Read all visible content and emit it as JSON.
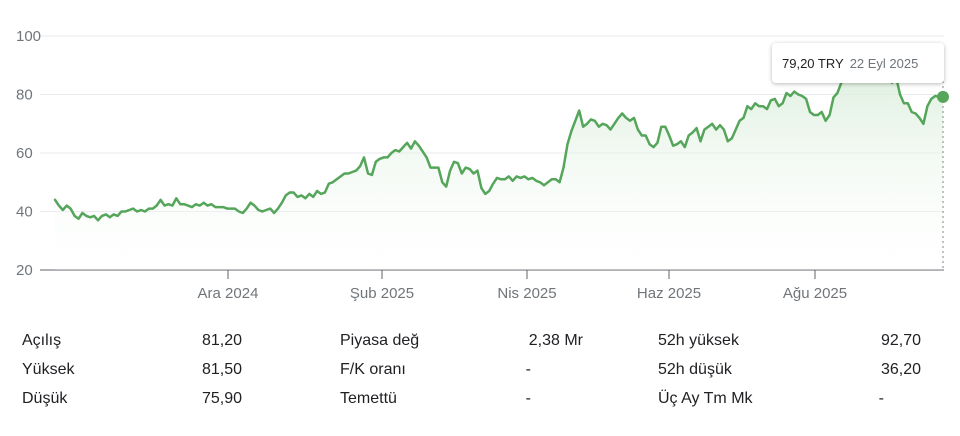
{
  "chart_data": {
    "type": "area",
    "ylim": [
      20,
      100
    ],
    "y_ticks": [
      20,
      40,
      60,
      80,
      100
    ],
    "x_tick_labels": [
      "Ara 2024",
      "Şub 2025",
      "Nis 2025",
      "Haz 2025",
      "Ağu 2025"
    ],
    "grid": true,
    "line_color": "#55a55a",
    "fill_color": "#e8f3e9",
    "series": [
      {
        "values": [
          44,
          42,
          40.5,
          42,
          41,
          38.5,
          37.5,
          39.5,
          38.5,
          38,
          38.5,
          37,
          38.5,
          39,
          38,
          39,
          38.5,
          40,
          40,
          40.5,
          41,
          40,
          40.5,
          40,
          41,
          41,
          42,
          44,
          42,
          42.5,
          42,
          44.5,
          42.5,
          42.5,
          42,
          41.5,
          42.5,
          42,
          43,
          42,
          42.5,
          41.5,
          41.5,
          41.5,
          41,
          41,
          41,
          40,
          39.5,
          41,
          43,
          42,
          40.5,
          40,
          40.5,
          41,
          39.5,
          41,
          43,
          45.5,
          46.5,
          46.5,
          45,
          45.5,
          44.5,
          46,
          45,
          47,
          46,
          46.5,
          49.5,
          50,
          51,
          52,
          53,
          53,
          53.5,
          54,
          55.5,
          58.5,
          53,
          52.5,
          57,
          58,
          58.5,
          58.5,
          60,
          61,
          60.5,
          62,
          63.5,
          61.5,
          64,
          62.5,
          60.5,
          58.5,
          55,
          55,
          55,
          50,
          48.5,
          54,
          57,
          56.5,
          53,
          55,
          54.5,
          53,
          54,
          48,
          46,
          47,
          49.5,
          51.5,
          51,
          51,
          52,
          50.5,
          52,
          51.5,
          52,
          51,
          51.5,
          50.5,
          50,
          49,
          50,
          51,
          51,
          50,
          55,
          63,
          67.5,
          71,
          74.5,
          69,
          70,
          71.5,
          71,
          69,
          70,
          69.5,
          68,
          70,
          72,
          73.5,
          72,
          71,
          72,
          68,
          66,
          66,
          63,
          62,
          63.5,
          69,
          69,
          66,
          62.5,
          63,
          64,
          62,
          66,
          67,
          68.5,
          64,
          68,
          69,
          70,
          68,
          69.5,
          68,
          64,
          65,
          68,
          71,
          72,
          76,
          75,
          77,
          76,
          76,
          75,
          78,
          78.5,
          76,
          77,
          80.5,
          79.5,
          81,
          80,
          79.5,
          78.5,
          74,
          73,
          73,
          74,
          71,
          73,
          79,
          80.5,
          84,
          88,
          89,
          90,
          91,
          92.7,
          90,
          89,
          88,
          87,
          86,
          85,
          85,
          84,
          86,
          80,
          77,
          77,
          74,
          73.5,
          72,
          70,
          76,
          78.5,
          79.5,
          79.2,
          79.2
        ]
      }
    ],
    "last_point": {
      "date": "22 Eyl 2025",
      "value": 79.2
    }
  },
  "tooltip": {
    "price": "79,20 TRY",
    "date": "22 Eyl 2025"
  },
  "stats": {
    "col1": [
      {
        "label": "Açılış",
        "value": "81,20"
      },
      {
        "label": "Yüksek",
        "value": "81,50"
      },
      {
        "label": "Düşük",
        "value": "75,90"
      }
    ],
    "col2": [
      {
        "label": "Piyasa değ",
        "value": "2,38 Mr"
      },
      {
        "label": "F/K oranı",
        "value": "-"
      },
      {
        "label": "Temettü",
        "value": "-"
      }
    ],
    "col3": [
      {
        "label": "52h yüksek",
        "value": "92,70"
      },
      {
        "label": "52h düşük",
        "value": "36,20"
      },
      {
        "label": "Üç Ay Tm Mk",
        "value": "-"
      }
    ]
  }
}
